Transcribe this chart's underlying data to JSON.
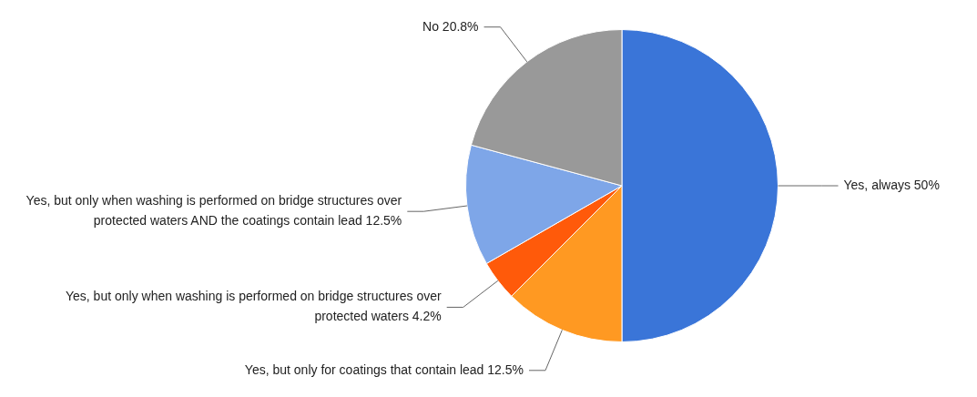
{
  "chart_data": {
    "type": "pie",
    "categories": [
      "Yes, always",
      "Yes, but only for coatings that contain lead",
      "Yes, but only when washing is performed on bridge structures over protected waters",
      "Yes, but only when washing is performed on bridge structures over protected waters AND the coatings contain lead",
      "No"
    ],
    "values": [
      50,
      12.5,
      4.2,
      12.5,
      20.8
    ],
    "value_labels": [
      "50%",
      "12.5%",
      "4.2%",
      "12.5%",
      "20.8%"
    ],
    "colors": [
      "#3a75d8",
      "#ff9922",
      "#ff5a0a",
      "#7ea6e8",
      "#999999"
    ]
  }
}
